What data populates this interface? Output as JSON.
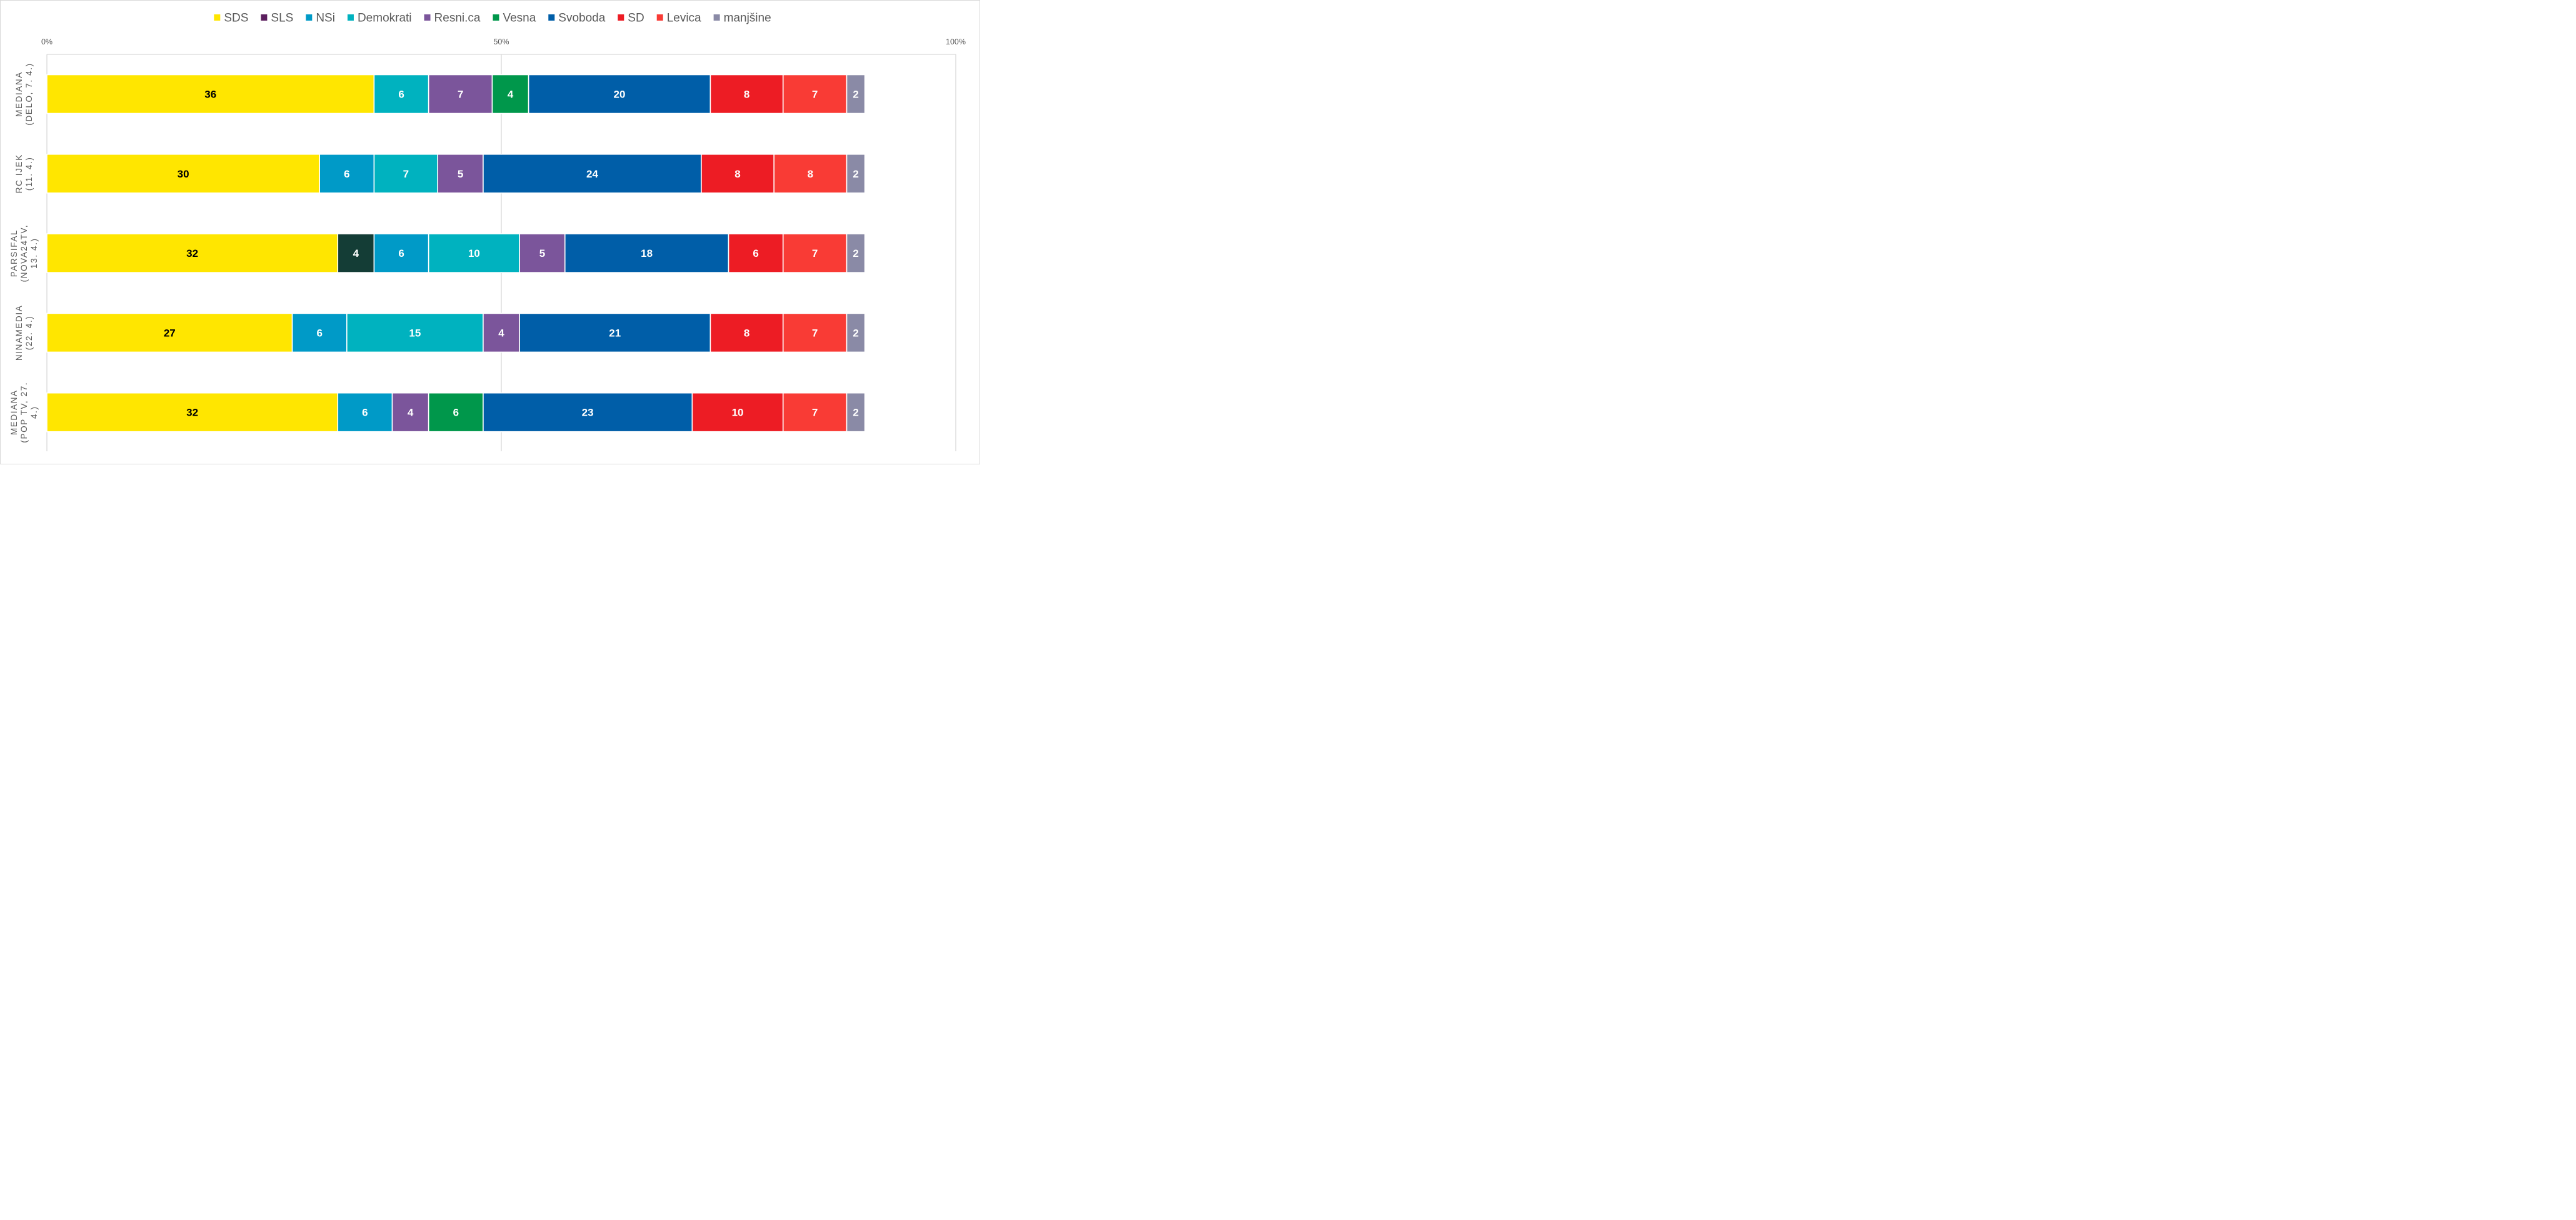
{
  "chart_data": {
    "type": "bar",
    "orientation": "horizontal",
    "stacked": "percent",
    "categories": [
      [
        "MEDIANA",
        "(DELO, 7. 4.)"
      ],
      [
        "RC IJEK",
        "(11. 4.)"
      ],
      [
        "PARSIFAL",
        "(NOVA24TV,",
        "13. 4.)"
      ],
      [
        "NINAMEDIA",
        "(22. 4.)"
      ],
      [
        "MEDIANA",
        "(POP TV, 27.",
        "4.)"
      ]
    ],
    "series": [
      {
        "name": "SDS",
        "color": "#FFE600",
        "label_color": "#000000",
        "values": [
          36,
          30,
          32,
          27,
          32
        ]
      },
      {
        "name": "SLS",
        "color": "#143D36",
        "legend_color": "#5B1E5E",
        "label_color": "#ffffff",
        "values": [
          null,
          null,
          4,
          null,
          null
        ]
      },
      {
        "name": "NSi",
        "color": "#009AC7",
        "label_color": "#ffffff",
        "values": [
          null,
          6,
          6,
          6,
          6
        ]
      },
      {
        "name": "Demokrati",
        "color": "#00B2BF",
        "label_color": "#ffffff",
        "values": [
          6,
          7,
          10,
          15,
          null
        ]
      },
      {
        "name": "Resni.ca",
        "color": "#7B559B",
        "label_color": "#ffffff",
        "values": [
          7,
          5,
          5,
          4,
          4
        ]
      },
      {
        "name": "Vesna",
        "color": "#00974B",
        "label_color": "#ffffff",
        "values": [
          4,
          null,
          null,
          null,
          6
        ]
      },
      {
        "name": "Svoboda",
        "color": "#005EA8",
        "label_color": "#ffffff",
        "values": [
          20,
          24,
          18,
          21,
          23
        ]
      },
      {
        "name": "SD",
        "color": "#ED1C24",
        "label_color": "#ffffff",
        "values": [
          8,
          8,
          6,
          8,
          10
        ]
      },
      {
        "name": "Levica",
        "color": "#F93B35",
        "label_color": "#ffffff",
        "values": [
          7,
          8,
          7,
          7,
          7
        ]
      },
      {
        "name": "manjšine",
        "color": "#8A8AA6",
        "label_color": "#ffffff",
        "values": [
          2,
          2,
          2,
          2,
          2
        ]
      }
    ],
    "x_ticks": [
      "0%",
      "50%",
      "100%"
    ],
    "xlim": [
      0,
      100
    ],
    "legend": "top",
    "grid": true
  }
}
